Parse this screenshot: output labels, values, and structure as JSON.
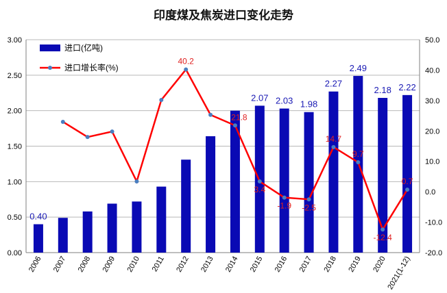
{
  "chart_data": {
    "type": "bar",
    "title": "印度煤及焦炭进口变化走势",
    "categories": [
      "2006",
      "2007",
      "2008",
      "2009",
      "2010",
      "2011",
      "2012",
      "2013",
      "2014",
      "2015",
      "2016",
      "2017",
      "2018",
      "2019",
      "2020",
      "2021(1-12)"
    ],
    "series": [
      {
        "name": "进口(亿吨)",
        "type": "bar",
        "axis": "left",
        "color": "#0a0ab4",
        "values": [
          0.4,
          0.49,
          0.58,
          0.69,
          0.72,
          0.93,
          1.31,
          1.64,
          2.0,
          2.07,
          2.03,
          1.98,
          2.27,
          2.49,
          2.18,
          2.22
        ],
        "labels": [
          "0.40",
          null,
          null,
          null,
          null,
          null,
          null,
          null,
          null,
          "2.07",
          "2.03",
          "1.98",
          "2.27",
          "2.49",
          "2.18",
          "2.22"
        ],
        "label_color": "#1a1ab4"
      },
      {
        "name": "进口增长率(%)",
        "type": "line",
        "axis": "right",
        "color": "#ff0000",
        "marker_color": "#4a7ec0",
        "values": [
          null,
          23.0,
          18.0,
          19.8,
          3.4,
          30.2,
          40.2,
          25.3,
          21.8,
          3.4,
          -1.9,
          -2.5,
          14.7,
          9.7,
          -12.4,
          0.7
        ],
        "labels": [
          null,
          null,
          null,
          null,
          null,
          null,
          "40.2",
          null,
          "21.8",
          "3.4",
          "-1.9",
          "-2.5",
          "14.7",
          "9.7",
          "-12.4",
          "0.7"
        ],
        "label_color": "#e02020"
      }
    ],
    "y_left": {
      "range": [
        0,
        3.0
      ],
      "ticks": [
        "0.00",
        "0.50",
        "1.00",
        "1.50",
        "2.00",
        "2.50",
        "3.00"
      ]
    },
    "y_right": {
      "range": [
        -20,
        50
      ],
      "ticks": [
        "-20.0",
        "-10.0",
        "0.0",
        "10.0",
        "20.0",
        "30.0",
        "40.0",
        "50.0"
      ]
    },
    "grid": "horizontal",
    "legend": "top-left"
  }
}
